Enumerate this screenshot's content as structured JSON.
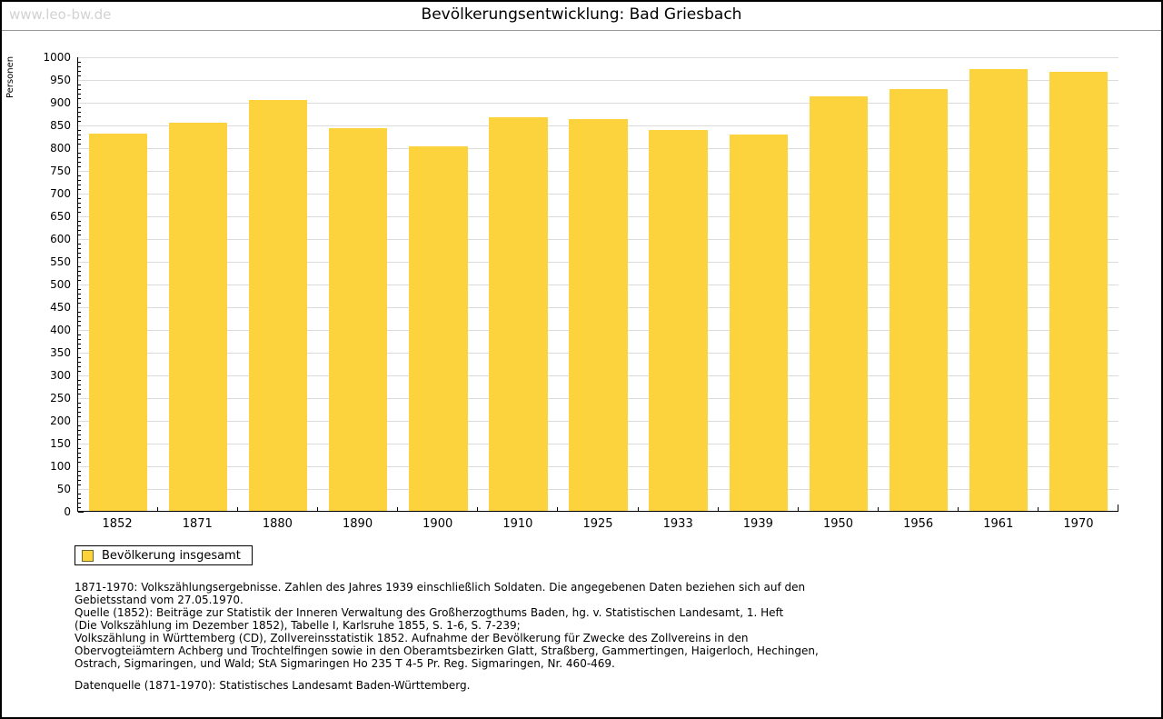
{
  "page": {
    "watermark": "www.leo-bw.de"
  },
  "chart_data": {
    "type": "bar",
    "title": "Bevölkerungsentwicklung: Bad Griesbach",
    "xlabel": "",
    "ylabel": "Personen",
    "categories": [
      "1852",
      "1871",
      "1880",
      "1890",
      "1900",
      "1910",
      "1925",
      "1933",
      "1939",
      "1950",
      "1956",
      "1961",
      "1970"
    ],
    "values": [
      832,
      856,
      906,
      844,
      804,
      868,
      864,
      840,
      830,
      913,
      930,
      974,
      967
    ],
    "ylim": [
      0,
      1000
    ],
    "y_major_step": 50,
    "y_minor_step": 10,
    "grid": "horizontal-major-lines",
    "bar_color": "#FCD33C",
    "gridline_color": "#dcdcdc",
    "legend": {
      "position": "bottom-left",
      "entries": [
        {
          "label": "Bevölkerung insgesamt",
          "color": "#FCD33C"
        }
      ]
    }
  },
  "footnotes": {
    "lines": [
      "1871-1970: Volkszählungsergebnisse. Zahlen des Jahres 1939 einschließlich Soldaten. Die angegebenen Daten beziehen sich auf den",
      "Gebietsstand vom 27.05.1970.",
      "Quelle (1852): Beiträge zur Statistik der Inneren Verwaltung des Großherzogthums Baden, hg. v. Statistischen Landesamt, 1. Heft",
      "(Die Volkszählung im Dezember 1852), Tabelle I, Karlsruhe 1855, S. 1-6, S. 7-239;",
      "Volkszählung in Württemberg (CD), Zollvereinsstatistik 1852. Aufnahme der Bevölkerung für Zwecke des Zollvereins in den",
      "Obervogteiämtern Achberg und Trochtelfingen sowie in den Oberamtsbezirken Glatt, Straßberg, Gammertingen, Haigerloch, Hechingen,",
      "Ostrach, Sigmaringen, und Wald; StA Sigmaringen Ho 235 T 4-5 Pr. Reg. Sigmaringen, Nr. 460-469."
    ],
    "datenquelle": "Datenquelle (1871-1970): Statistisches Landesamt Baden-Württemberg."
  }
}
